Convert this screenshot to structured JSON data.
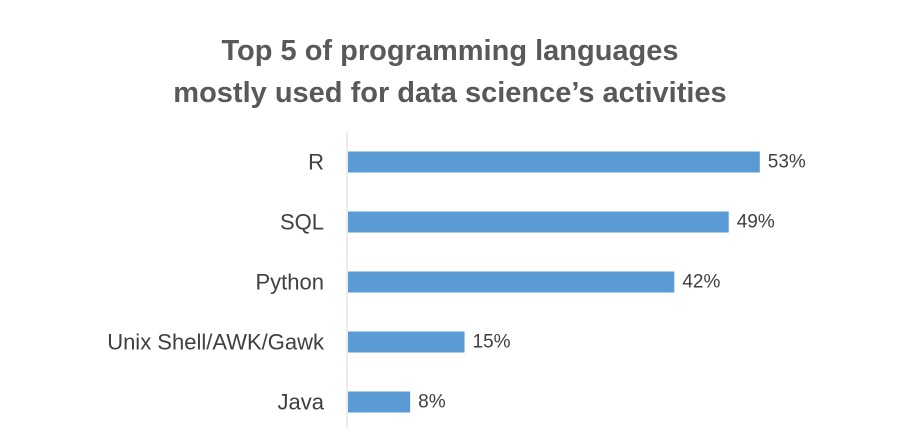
{
  "chart_data": {
    "type": "bar",
    "orientation": "horizontal",
    "title": [
      "Top 5 of programming languages",
      "mostly used for data science’s activities"
    ],
    "categories": [
      "R",
      "SQL",
      "Python",
      "Unix Shell/AWK/Gawk",
      "Java"
    ],
    "values": [
      53,
      49,
      42,
      15,
      8
    ],
    "value_labels": [
      "53%",
      "49%",
      "42%",
      "15%",
      "8%"
    ],
    "xlim": [
      0,
      100
    ],
    "grid": false,
    "legend": "none",
    "bar_color": "#5B9BD5"
  }
}
